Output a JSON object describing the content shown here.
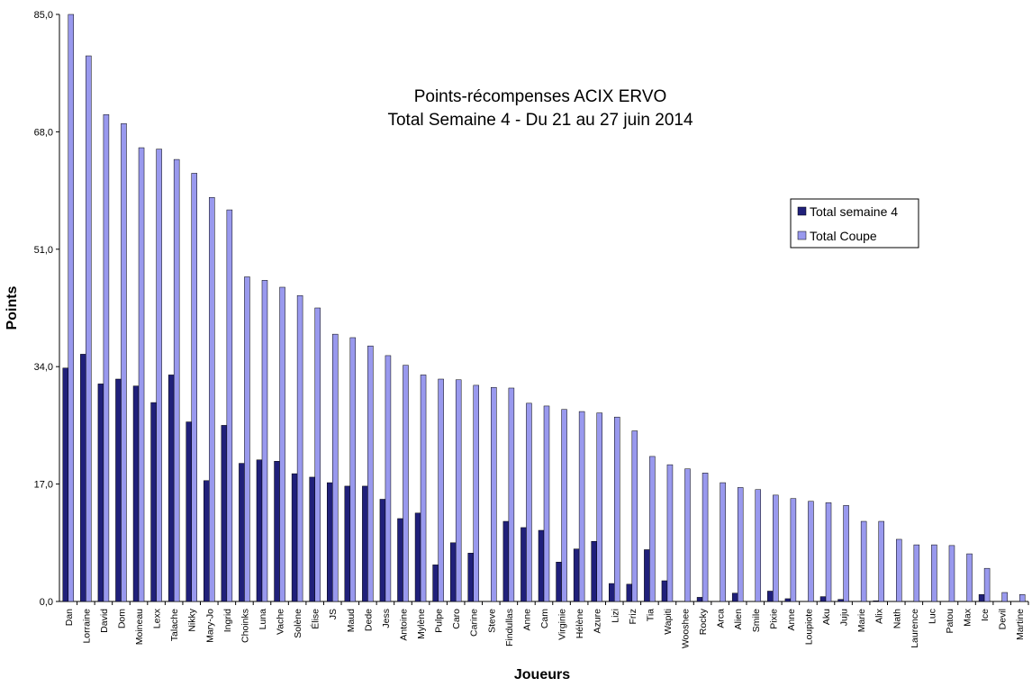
{
  "chart_data": {
    "type": "bar",
    "title": "Points-récompenses ACIX ERVO",
    "subtitle": "Total Semaine 4 - Du 21 au 27 juin 2014",
    "xlabel": "Joueurs",
    "ylabel": "Points",
    "ylim": [
      0,
      85
    ],
    "yticks": [
      "0,0",
      "17,0",
      "34,0",
      "51,0",
      "68,0",
      "85,0"
    ],
    "grid": false,
    "legend_position": "right",
    "categories": [
      "Dan",
      "Lorraine",
      "David",
      "Dom",
      "Moineau",
      "Lexx",
      "Talache",
      "Nikky",
      "Mary-Jo",
      "Ingrid",
      "Choinks",
      "Luna",
      "Vache",
      "Solène",
      "Élise",
      "JS",
      "Maud",
      "Dede",
      "Jess",
      "Antoine",
      "Mylène",
      "Pulpe",
      "Caro",
      "Carine",
      "Steve",
      "Findullas",
      "Anne",
      "Cam",
      "Virginie",
      "Hélène",
      "Azure",
      "Lizi",
      "Friz",
      "Tia",
      "Wapiti",
      "Wooshee",
      "Rocky",
      "Arca",
      "Alien",
      "Smile",
      "Pixie",
      "Anne",
      "Loupiote",
      "Aku",
      "Juju",
      "Marie",
      "Alix",
      "Nath",
      "Laurence",
      "Luc",
      "Patou",
      "Max",
      "Ice",
      "Devil",
      "Martine"
    ],
    "series": [
      {
        "name": "Total semaine 4",
        "color": "#20207a",
        "values": [
          33.8,
          35.8,
          31.5,
          32.2,
          31.2,
          28.8,
          32.8,
          26.0,
          17.5,
          25.5,
          20.0,
          20.5,
          20.3,
          18.5,
          18.0,
          17.2,
          16.7,
          16.7,
          14.8,
          12.0,
          12.8,
          5.3,
          8.5,
          7.0,
          0,
          11.6,
          10.7,
          10.3,
          5.7,
          7.6,
          8.7,
          2.6,
          2.5,
          7.5,
          3.0,
          0,
          0.6,
          0,
          1.2,
          0,
          1.5,
          0.4,
          0,
          0.7,
          0.3,
          0,
          0.1,
          0,
          0,
          0,
          0,
          0,
          1.0,
          0,
          0
        ]
      },
      {
        "name": "Total Coupe",
        "color": "#9999ee",
        "values": [
          85.0,
          79.0,
          70.5,
          69.2,
          65.7,
          65.5,
          64.0,
          62.0,
          58.5,
          56.7,
          47.0,
          46.5,
          45.5,
          44.3,
          42.5,
          38.7,
          38.2,
          37.0,
          35.6,
          34.2,
          32.8,
          32.2,
          32.1,
          31.3,
          31.0,
          30.9,
          28.7,
          28.3,
          27.8,
          27.5,
          27.3,
          26.7,
          24.7,
          21.0,
          19.8,
          19.2,
          18.6,
          17.2,
          16.5,
          16.2,
          15.4,
          14.9,
          14.5,
          14.3,
          13.9,
          11.6,
          11.6,
          9.0,
          8.2,
          8.2,
          8.1,
          6.9,
          4.8,
          1.3,
          1.0
        ]
      }
    ]
  }
}
